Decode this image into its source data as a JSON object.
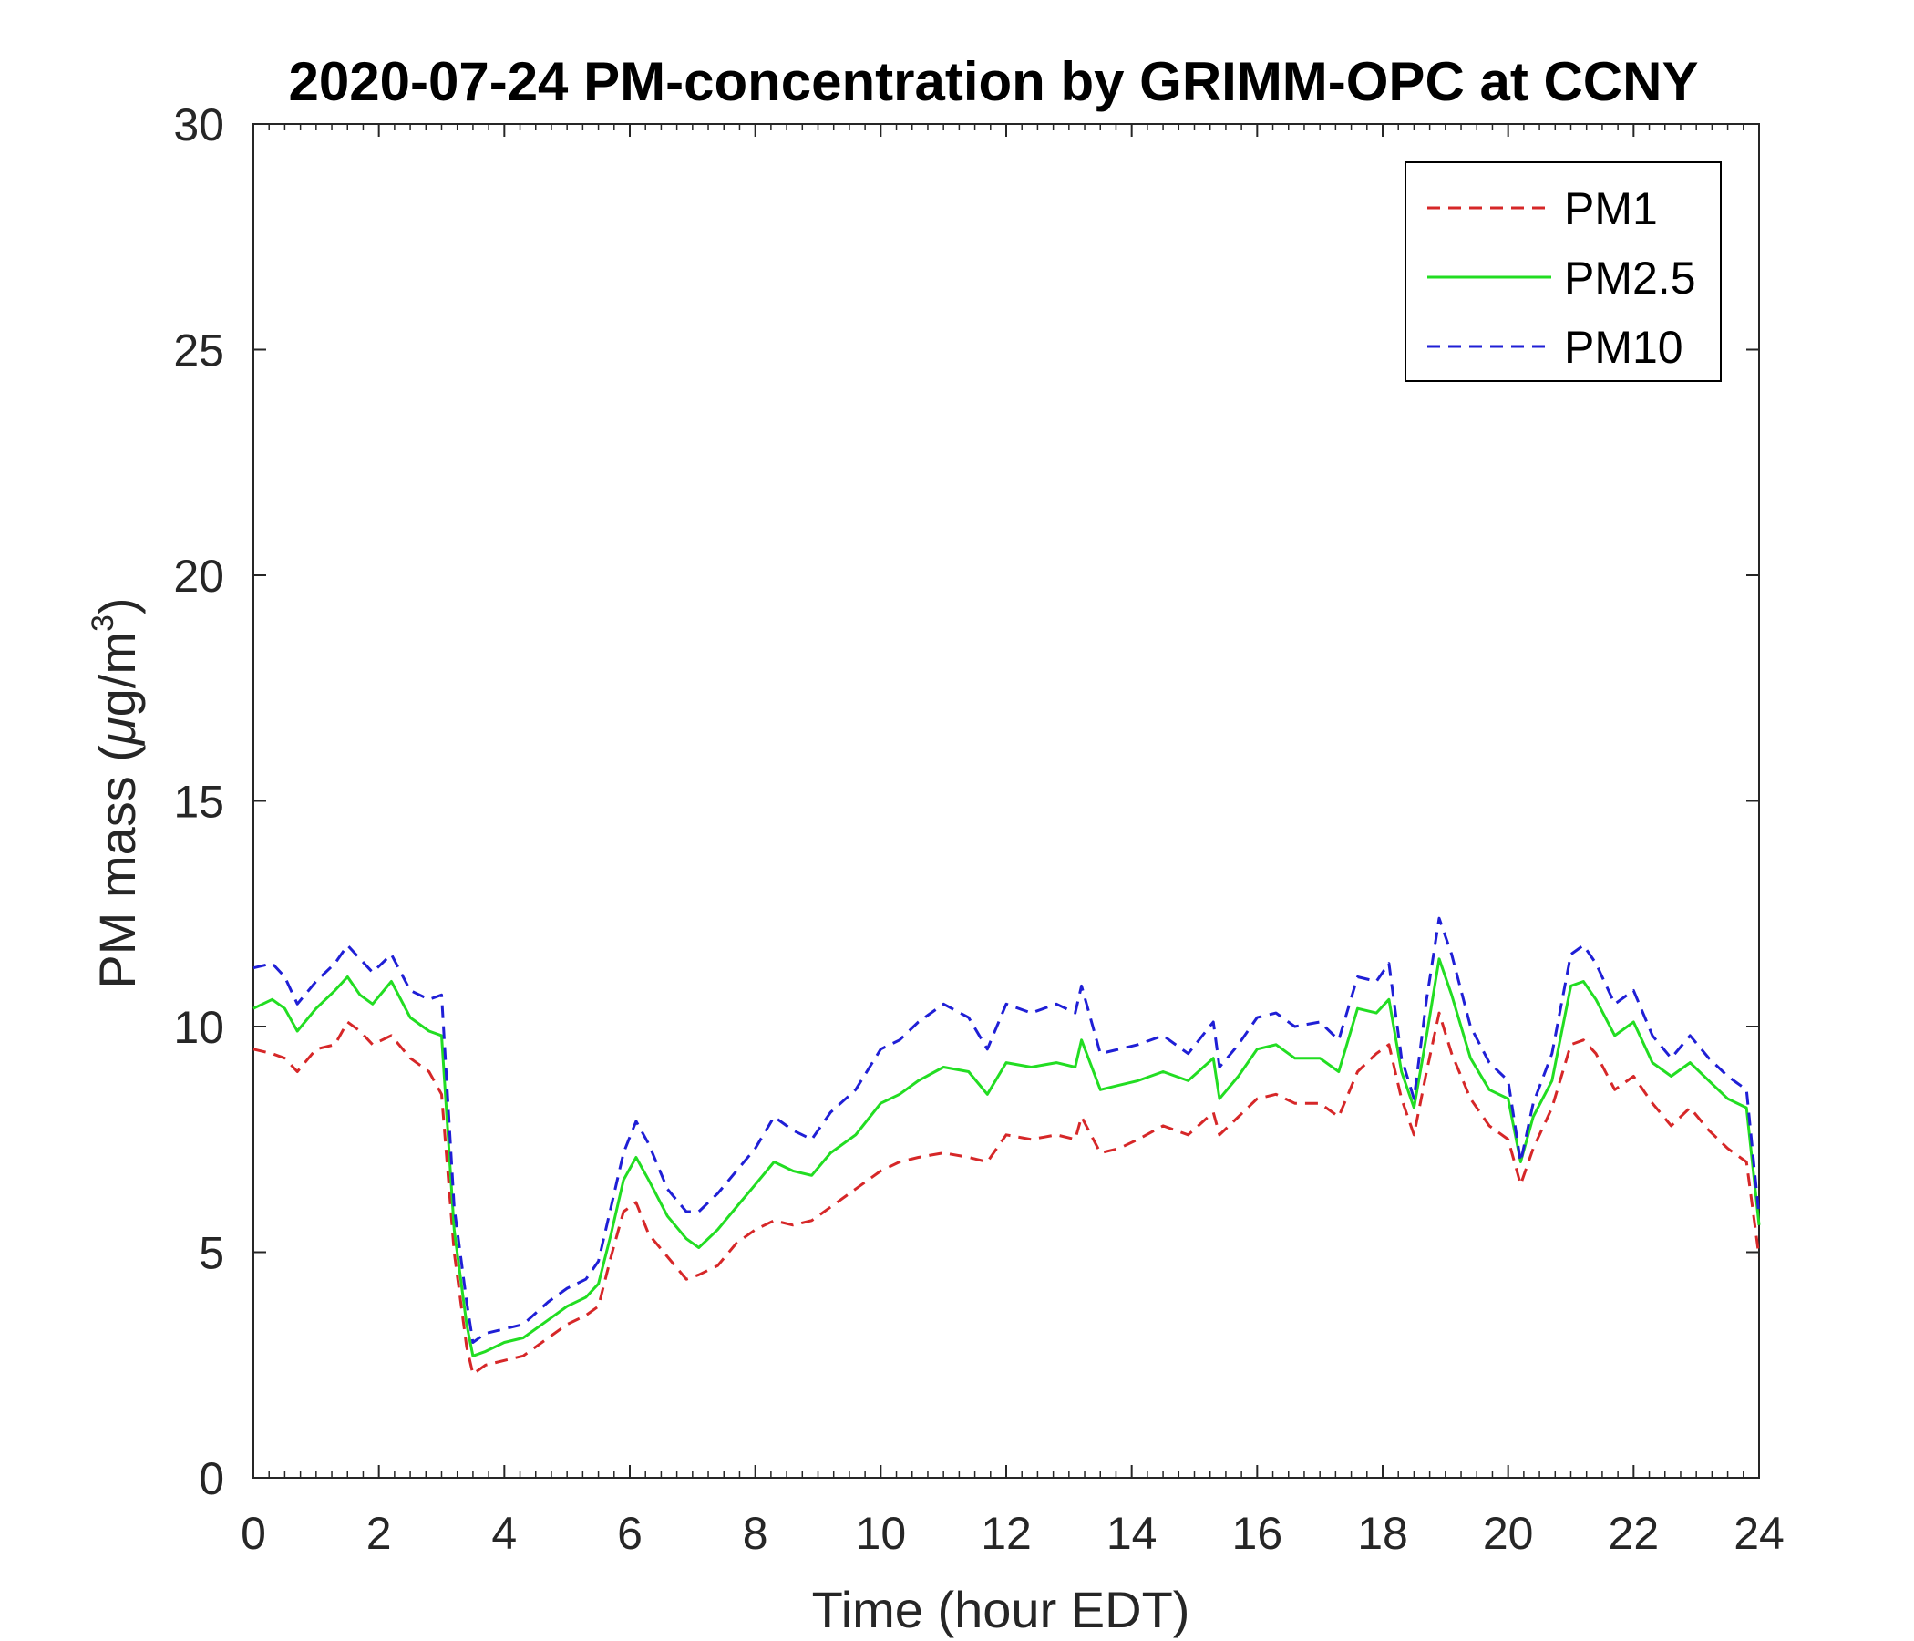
{
  "chart_data": {
    "type": "line",
    "title": "2020-07-24 PM-concentration by GRIMM-OPC at CCNY",
    "xlabel": "Time (hour EDT)",
    "ylabel_prefix": "PM mass (",
    "ylabel_mu": "μ",
    "ylabel_unit": "g/m",
    "ylabel_sup": "3",
    "ylabel_suffix": ")",
    "xlim": [
      0,
      24
    ],
    "ylim": [
      0,
      30
    ],
    "xticks": [
      "0",
      "2",
      "4",
      "6",
      "8",
      "10",
      "12",
      "14",
      "16",
      "18",
      "20",
      "22",
      "24"
    ],
    "yticks": [
      "0",
      "5",
      "10",
      "15",
      "20",
      "25",
      "30"
    ],
    "grid": false,
    "legend_position": "top-right",
    "series": [
      {
        "name": "PM1",
        "color": "#d62728",
        "dash": "dashed",
        "x": [
          0,
          0.3,
          0.5,
          0.7,
          1.0,
          1.3,
          1.5,
          1.7,
          1.9,
          2.2,
          2.5,
          2.8,
          3.0,
          3.2,
          3.4,
          3.5,
          3.7,
          4.0,
          4.3,
          4.7,
          5.0,
          5.3,
          5.5,
          5.7,
          5.9,
          6.1,
          6.3,
          6.6,
          6.9,
          7.1,
          7.4,
          7.7,
          8.0,
          8.3,
          8.6,
          8.9,
          9.2,
          9.6,
          10.0,
          10.3,
          10.6,
          11.0,
          11.4,
          11.7,
          12.0,
          12.4,
          12.8,
          13.1,
          13.2,
          13.5,
          13.8,
          14.1,
          14.5,
          14.9,
          15.3,
          15.4,
          15.7,
          16.0,
          16.3,
          16.6,
          17.0,
          17.3,
          17.6,
          17.9,
          18.1,
          18.3,
          18.5,
          18.7,
          18.9,
          19.1,
          19.4,
          19.7,
          20.0,
          20.2,
          20.4,
          20.7,
          21.0,
          21.2,
          21.4,
          21.7,
          22.0,
          22.3,
          22.6,
          22.9,
          23.2,
          23.5,
          23.8,
          24.0
        ],
        "values": [
          9.5,
          9.4,
          9.3,
          9.0,
          9.5,
          9.6,
          10.1,
          9.9,
          9.6,
          9.8,
          9.3,
          9.0,
          8.5,
          5.0,
          2.9,
          2.3,
          2.5,
          2.6,
          2.7,
          3.1,
          3.4,
          3.6,
          3.8,
          4.9,
          5.9,
          6.1,
          5.4,
          4.9,
          4.4,
          4.5,
          4.7,
          5.2,
          5.5,
          5.7,
          5.6,
          5.7,
          6.0,
          6.4,
          6.8,
          7.0,
          7.1,
          7.2,
          7.1,
          7.0,
          7.6,
          7.5,
          7.6,
          7.5,
          8.0,
          7.2,
          7.3,
          7.5,
          7.8,
          7.6,
          8.1,
          7.6,
          8.0,
          8.4,
          8.5,
          8.3,
          8.3,
          8.0,
          9.0,
          9.4,
          9.6,
          8.4,
          7.6,
          9.0,
          10.3,
          9.4,
          8.4,
          7.8,
          7.5,
          6.5,
          7.3,
          8.2,
          9.6,
          9.7,
          9.4,
          8.6,
          8.9,
          8.3,
          7.8,
          8.2,
          7.7,
          7.3,
          7.0,
          4.9
        ]
      },
      {
        "name": "PM2.5",
        "color": "#22dd22",
        "dash": "solid",
        "x": [
          0,
          0.3,
          0.5,
          0.7,
          1.0,
          1.3,
          1.5,
          1.7,
          1.9,
          2.2,
          2.5,
          2.8,
          3.0,
          3.2,
          3.4,
          3.5,
          3.7,
          4.0,
          4.3,
          4.7,
          5.0,
          5.3,
          5.5,
          5.7,
          5.9,
          6.1,
          6.3,
          6.6,
          6.9,
          7.1,
          7.4,
          7.7,
          8.0,
          8.3,
          8.6,
          8.9,
          9.2,
          9.6,
          10.0,
          10.3,
          10.6,
          11.0,
          11.4,
          11.7,
          12.0,
          12.4,
          12.8,
          13.1,
          13.2,
          13.5,
          13.8,
          14.1,
          14.5,
          14.9,
          15.3,
          15.4,
          15.7,
          16.0,
          16.3,
          16.6,
          17.0,
          17.3,
          17.6,
          17.9,
          18.1,
          18.3,
          18.5,
          18.7,
          18.9,
          19.1,
          19.4,
          19.7,
          20.0,
          20.2,
          20.4,
          20.7,
          21.0,
          21.2,
          21.4,
          21.7,
          22.0,
          22.3,
          22.6,
          22.9,
          23.2,
          23.5,
          23.8,
          24.0
        ],
        "values": [
          10.4,
          10.6,
          10.4,
          9.9,
          10.4,
          10.8,
          11.1,
          10.7,
          10.5,
          11.0,
          10.2,
          9.9,
          9.8,
          5.5,
          3.4,
          2.7,
          2.8,
          3.0,
          3.1,
          3.5,
          3.8,
          4.0,
          4.3,
          5.4,
          6.6,
          7.1,
          6.6,
          5.8,
          5.3,
          5.1,
          5.5,
          6.0,
          6.5,
          7.0,
          6.8,
          6.7,
          7.2,
          7.6,
          8.3,
          8.5,
          8.8,
          9.1,
          9.0,
          8.5,
          9.2,
          9.1,
          9.2,
          9.1,
          9.7,
          8.6,
          8.7,
          8.8,
          9.0,
          8.8,
          9.3,
          8.4,
          8.9,
          9.5,
          9.6,
          9.3,
          9.3,
          9.0,
          10.4,
          10.3,
          10.6,
          9.0,
          8.2,
          9.8,
          11.5,
          10.7,
          9.3,
          8.6,
          8.4,
          7.0,
          8.0,
          8.8,
          10.9,
          11.0,
          10.6,
          9.8,
          10.1,
          9.2,
          8.9,
          9.2,
          8.8,
          8.4,
          8.2,
          5.6
        ]
      },
      {
        "name": "PM10",
        "color": "#1f1fd6",
        "dash": "dashed",
        "x": [
          0,
          0.3,
          0.5,
          0.7,
          1.0,
          1.3,
          1.5,
          1.7,
          1.9,
          2.2,
          2.5,
          2.8,
          3.0,
          3.2,
          3.4,
          3.5,
          3.7,
          4.0,
          4.3,
          4.7,
          5.0,
          5.3,
          5.5,
          5.7,
          5.9,
          6.1,
          6.3,
          6.6,
          6.9,
          7.1,
          7.4,
          7.7,
          8.0,
          8.3,
          8.6,
          8.9,
          9.2,
          9.6,
          10.0,
          10.3,
          10.6,
          11.0,
          11.4,
          11.7,
          12.0,
          12.4,
          12.8,
          13.1,
          13.2,
          13.5,
          13.8,
          14.1,
          14.5,
          14.9,
          15.3,
          15.4,
          15.7,
          16.0,
          16.3,
          16.6,
          17.0,
          17.3,
          17.6,
          17.9,
          18.1,
          18.3,
          18.5,
          18.7,
          18.9,
          19.1,
          19.4,
          19.7,
          20.0,
          20.2,
          20.4,
          20.7,
          21.0,
          21.2,
          21.4,
          21.7,
          22.0,
          22.3,
          22.6,
          22.9,
          23.2,
          23.5,
          23.8,
          24.0
        ],
        "values": [
          11.3,
          11.4,
          11.1,
          10.5,
          11.0,
          11.4,
          11.8,
          11.5,
          11.2,
          11.6,
          10.8,
          10.6,
          10.7,
          6.0,
          3.9,
          3.0,
          3.2,
          3.3,
          3.4,
          3.9,
          4.2,
          4.4,
          4.8,
          6.0,
          7.2,
          7.9,
          7.4,
          6.4,
          5.9,
          5.9,
          6.3,
          6.8,
          7.3,
          8.0,
          7.7,
          7.5,
          8.1,
          8.6,
          9.5,
          9.7,
          10.1,
          10.5,
          10.2,
          9.5,
          10.5,
          10.3,
          10.5,
          10.3,
          10.9,
          9.4,
          9.5,
          9.6,
          9.8,
          9.4,
          10.1,
          9.1,
          9.6,
          10.2,
          10.3,
          10.0,
          10.1,
          9.7,
          11.1,
          11.0,
          11.4,
          9.3,
          8.4,
          10.6,
          12.4,
          11.6,
          10.0,
          9.2,
          8.8,
          7.0,
          8.3,
          9.4,
          11.6,
          11.8,
          11.4,
          10.5,
          10.8,
          9.8,
          9.3,
          9.8,
          9.3,
          8.9,
          8.6,
          5.8
        ]
      }
    ]
  }
}
